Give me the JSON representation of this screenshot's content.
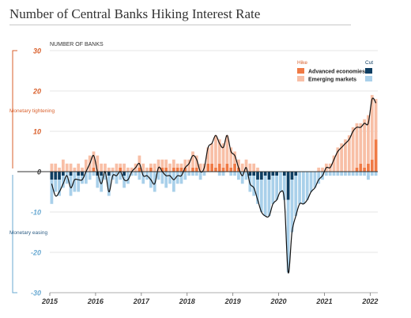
{
  "title": "Number of Central Banks Hiking Interest Rate",
  "chart_data": {
    "type": "bar",
    "title": "Number of Central Banks Hiking Interest Rate",
    "ylabel": "NUMBER OF BANKS",
    "ylim": [
      -30,
      30
    ],
    "yticks": [
      30,
      20,
      10,
      0,
      -10,
      -20,
      -30
    ],
    "xticks": [
      "2015",
      "2016",
      "2017",
      "2018",
      "2019",
      "2020",
      "2021",
      "2022"
    ],
    "x_start": "2015-01",
    "x_end": "2022-02",
    "band_labels": {
      "tightening": "Monetary tightening",
      "easing": "Monetary easing"
    },
    "legend": {
      "position": "top-right",
      "hike_label": "Hike",
      "cut_label": "Cut"
    },
    "colors": {
      "advanced_hike": "#f07a45",
      "emerging_hike": "#f8bfa6",
      "advanced_cut": "#0e3e62",
      "emerging_cut": "#a9d0ea",
      "net_line": "#111111",
      "tightening": "#d95f2b",
      "easing": "#6aaad2"
    },
    "months": [
      "2015-01",
      "2015-02",
      "2015-03",
      "2015-04",
      "2015-05",
      "2015-06",
      "2015-07",
      "2015-08",
      "2015-09",
      "2015-10",
      "2015-11",
      "2015-12",
      "2016-01",
      "2016-02",
      "2016-03",
      "2016-04",
      "2016-05",
      "2016-06",
      "2016-07",
      "2016-08",
      "2016-09",
      "2016-10",
      "2016-11",
      "2016-12",
      "2017-01",
      "2017-02",
      "2017-03",
      "2017-04",
      "2017-05",
      "2017-06",
      "2017-07",
      "2017-08",
      "2017-09",
      "2017-10",
      "2017-11",
      "2017-12",
      "2018-01",
      "2018-02",
      "2018-03",
      "2018-04",
      "2018-05",
      "2018-06",
      "2018-07",
      "2018-08",
      "2018-09",
      "2018-10",
      "2018-11",
      "2018-12",
      "2019-01",
      "2019-02",
      "2019-03",
      "2019-04",
      "2019-05",
      "2019-06",
      "2019-07",
      "2019-08",
      "2019-09",
      "2019-10",
      "2019-11",
      "2019-12",
      "2020-01",
      "2020-02",
      "2020-03",
      "2020-04",
      "2020-05",
      "2020-06",
      "2020-07",
      "2020-08",
      "2020-09",
      "2020-10",
      "2020-11",
      "2020-12",
      "2021-01",
      "2021-02",
      "2021-03",
      "2021-04",
      "2021-05",
      "2021-06",
      "2021-07",
      "2021-08",
      "2021-09",
      "2021-10",
      "2021-11",
      "2021-12",
      "2022-01",
      "2022-02"
    ],
    "series": [
      {
        "name": "Advanced economies",
        "direction": "hike",
        "values": [
          0,
          0,
          0,
          0,
          0,
          0,
          0,
          0,
          0,
          0,
          0,
          1,
          0,
          0,
          0,
          0,
          0,
          0,
          1,
          0,
          0,
          0,
          0,
          1,
          0,
          0,
          1,
          0,
          0,
          1,
          1,
          0,
          1,
          1,
          1,
          1,
          0,
          1,
          1,
          0,
          0,
          2,
          2,
          1,
          2,
          1,
          2,
          1,
          2,
          1,
          0,
          0,
          0,
          0,
          0,
          0,
          0,
          0,
          0,
          0,
          0,
          0,
          0,
          0,
          0,
          0,
          0,
          0,
          0,
          0,
          0,
          0,
          0,
          0,
          0,
          0,
          0,
          0,
          0,
          0,
          1,
          2,
          1,
          2,
          3,
          8
        ]
      },
      {
        "name": "Emerging markets",
        "direction": "hike",
        "values": [
          2,
          2,
          1,
          3,
          2,
          2,
          1,
          2,
          1,
          3,
          4,
          4,
          4,
          2,
          2,
          1,
          1,
          2,
          1,
          2,
          1,
          1,
          2,
          3,
          2,
          1,
          1,
          2,
          3,
          2,
          2,
          2,
          2,
          1,
          1,
          2,
          3,
          4,
          3,
          2,
          2,
          4,
          5,
          8,
          6,
          6,
          7,
          5,
          3,
          2,
          2,
          3,
          2,
          2,
          1,
          0,
          0,
          0,
          0,
          0,
          0,
          0,
          0,
          0,
          0,
          0,
          0,
          0,
          0,
          0,
          1,
          1,
          2,
          2,
          4,
          6,
          7,
          8,
          9,
          11,
          11,
          10,
          12,
          12,
          16,
          10
        ]
      },
      {
        "name": "Advanced economies",
        "direction": "cut",
        "values": [
          -2,
          -2,
          -2,
          -1,
          0,
          -1,
          0,
          -1,
          -1,
          0,
          0,
          0,
          -1,
          -1,
          0,
          -1,
          0,
          0,
          0,
          -1,
          0,
          0,
          0,
          0,
          0,
          0,
          0,
          0,
          0,
          0,
          0,
          0,
          0,
          0,
          0,
          0,
          0,
          0,
          0,
          0,
          0,
          0,
          0,
          0,
          0,
          0,
          0,
          0,
          0,
          0,
          0,
          0,
          -1,
          -1,
          -2,
          -2,
          -1,
          -2,
          -1,
          -1,
          0,
          -1,
          -7,
          -2,
          -1,
          0,
          0,
          0,
          0,
          0,
          0,
          0,
          0,
          0,
          0,
          0,
          0,
          0,
          0,
          0,
          0,
          0,
          0,
          0,
          0,
          0
        ]
      },
      {
        "name": "Emerging markets",
        "direction": "cut",
        "values": [
          -6,
          -3,
          -4,
          -3,
          -3,
          -5,
          -5,
          -4,
          -2,
          -3,
          -2,
          -1,
          -3,
          -4,
          -2,
          -5,
          -2,
          -3,
          -2,
          -3,
          -3,
          -1,
          -1,
          -2,
          -3,
          -2,
          -4,
          -5,
          -2,
          -3,
          -4,
          -3,
          -5,
          -3,
          -3,
          -2,
          -1,
          -1,
          -1,
          -2,
          -1,
          0,
          0,
          0,
          -1,
          -1,
          0,
          -1,
          -1,
          -2,
          -3,
          -2,
          -4,
          -5,
          -6,
          -8,
          -10,
          -9,
          -7,
          -6,
          -5,
          -6,
          -18,
          -13,
          -10,
          -8,
          -8,
          -7,
          -5,
          -4,
          -3,
          -2,
          -1,
          -1,
          -1,
          -1,
          -1,
          -1,
          -1,
          -1,
          -1,
          -1,
          -1,
          -2,
          -1,
          -1
        ]
      }
    ],
    "net": [
      -3,
      -6,
      -5,
      -3,
      -1,
      -4,
      -2,
      -2,
      -2,
      0,
      2,
      4,
      0,
      -3,
      0,
      -5,
      -1,
      -1,
      0,
      -2,
      -2,
      0,
      1,
      2,
      -1,
      -1,
      -2,
      -3,
      1,
      0,
      -1,
      -1,
      -2,
      -1,
      -1,
      1,
      2,
      4,
      3,
      0,
      1,
      6,
      7,
      9,
      7,
      6,
      9,
      5,
      4,
      1,
      -1,
      1,
      -3,
      -4,
      -7,
      -10,
      -11,
      -11,
      -8,
      -7,
      -5,
      -7,
      -25,
      -15,
      -11,
      -8,
      -8,
      -7,
      -5,
      -4,
      -2,
      -1,
      1,
      1,
      3,
      5,
      6,
      7,
      8,
      10,
      11,
      11,
      12,
      12,
      18,
      17
    ]
  }
}
